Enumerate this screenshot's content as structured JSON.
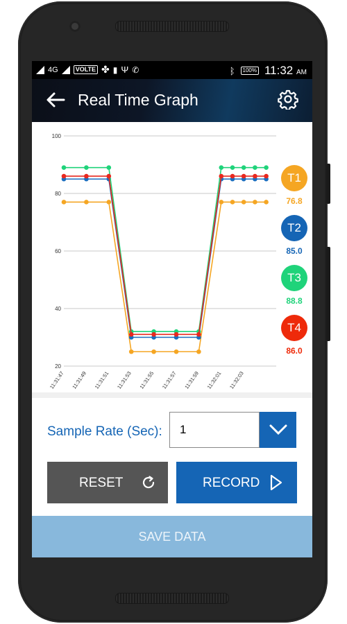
{
  "status_bar": {
    "network": "4G",
    "volte": "VOLTE",
    "battery": "100%",
    "time": "11:32",
    "ampm": "AM"
  },
  "app_bar": {
    "title": "Real Time Graph",
    "back_icon": "arrow-left-icon",
    "settings_icon": "gear-icon"
  },
  "chart_data": {
    "type": "line",
    "title": "",
    "xlabel": "",
    "ylabel": "",
    "ylim": [
      20,
      100
    ],
    "yticks": [
      20,
      40,
      60,
      80,
      100
    ],
    "grid": true,
    "x_tick_labels": [
      "11:31:47",
      "11:31:49",
      "11:31:51",
      "11:31:53",
      "11:31:55",
      "11:31:57",
      "11:31:59",
      "11:32:01",
      "11:32:03"
    ],
    "x": [
      "11:31:47",
      "11:31:49",
      "11:31:51",
      "11:31:53",
      "11:31:55",
      "11:31:57",
      "11:31:59",
      "11:32:01",
      "11:32:02",
      "11:32:03",
      "11:32:04",
      "11:32:05"
    ],
    "series": [
      {
        "name": "T1",
        "color": "#f5a623",
        "values": [
          77,
          77,
          77,
          25,
          25,
          25,
          25,
          77,
          77,
          77,
          77,
          77
        ]
      },
      {
        "name": "T2",
        "color": "#1a6ec0",
        "values": [
          85,
          85,
          85,
          30,
          30,
          30,
          30,
          85,
          85,
          85,
          85,
          85
        ]
      },
      {
        "name": "T3",
        "color": "#1fd37a",
        "values": [
          89,
          89,
          89,
          32,
          32,
          32,
          32,
          89,
          89,
          89,
          89,
          89
        ]
      },
      {
        "name": "T4",
        "color": "#e8281f",
        "values": [
          86,
          86,
          86,
          31,
          31,
          31,
          31,
          86,
          86,
          86,
          86,
          86
        ]
      }
    ]
  },
  "legend": [
    {
      "label": "T1",
      "value": "76.8",
      "color": "#f5a623"
    },
    {
      "label": "T2",
      "value": "85.0",
      "color": "#1565b5"
    },
    {
      "label": "T3",
      "value": "88.8",
      "color": "#1fd37a"
    },
    {
      "label": "T4",
      "value": "86.0",
      "color": "#ee2a0a"
    }
  ],
  "sample_rate": {
    "label": "Sample Rate (Sec):",
    "value": "1",
    "dropdown_icon": "chevron-down-icon"
  },
  "buttons": {
    "reset": "RESET",
    "reset_icon": "refresh-icon",
    "record": "RECORD",
    "record_icon": "play-icon",
    "save": "SAVE DATA"
  }
}
